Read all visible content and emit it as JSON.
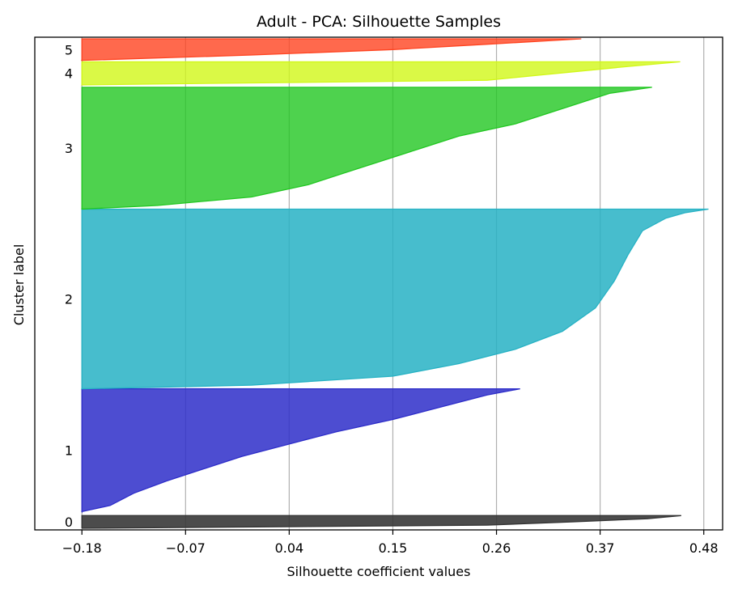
{
  "chart_data": {
    "type": "area",
    "title": "Adult - PCA: Silhouette Samples",
    "xlabel": "Silhouette coefficient values",
    "ylabel": "Cluster label",
    "xlim": [
      -0.23,
      0.5
    ],
    "x_ticks": [
      "-0.18",
      "-0.07",
      "0.04",
      "0.15",
      "0.26",
      "0.37",
      "0.48"
    ],
    "grid": "vertical",
    "series": [
      {
        "name": "0",
        "color": "#333333",
        "fill_opacity": 0.88,
        "start": 0.0,
        "end": 0.026,
        "profile": [
          [
            0,
            0.456
          ],
          [
            0.25,
            0.42
          ],
          [
            0.5,
            0.34
          ],
          [
            0.75,
            0.25
          ],
          [
            1,
            -0.18
          ]
        ]
      },
      {
        "name": "1",
        "color": "#2e2ec9",
        "fill_opacity": 0.85,
        "start": 0.034,
        "end": 0.285,
        "profile": [
          [
            0,
            0.285
          ],
          [
            0.05,
            0.25
          ],
          [
            0.15,
            0.2
          ],
          [
            0.25,
            0.15
          ],
          [
            0.35,
            0.09
          ],
          [
            0.45,
            0.04
          ],
          [
            0.55,
            -0.01
          ],
          [
            0.65,
            -0.05
          ],
          [
            0.75,
            -0.09
          ],
          [
            0.85,
            -0.125
          ],
          [
            0.95,
            -0.15
          ],
          [
            1,
            -0.18
          ]
        ]
      },
      {
        "name": "2",
        "color": "#27b2c4",
        "fill_opacity": 0.85,
        "start": 0.285,
        "end": 0.652,
        "profile": [
          [
            0,
            0.485
          ],
          [
            0.02,
            0.46
          ],
          [
            0.05,
            0.44
          ],
          [
            0.12,
            0.415
          ],
          [
            0.25,
            0.4
          ],
          [
            0.4,
            0.385
          ],
          [
            0.55,
            0.365
          ],
          [
            0.68,
            0.33
          ],
          [
            0.78,
            0.28
          ],
          [
            0.86,
            0.22
          ],
          [
            0.93,
            0.15
          ],
          [
            0.98,
            0.0
          ],
          [
            1,
            -0.18
          ]
        ]
      },
      {
        "name": "3",
        "color": "#22c722",
        "fill_opacity": 0.8,
        "start": 0.652,
        "end": 0.901,
        "profile": [
          [
            0,
            0.425
          ],
          [
            0.05,
            0.38
          ],
          [
            0.15,
            0.34
          ],
          [
            0.3,
            0.28
          ],
          [
            0.4,
            0.22
          ],
          [
            0.5,
            0.18
          ],
          [
            0.6,
            0.14
          ],
          [
            0.7,
            0.1
          ],
          [
            0.8,
            0.06
          ],
          [
            0.9,
            0.0
          ],
          [
            0.97,
            -0.1
          ],
          [
            1,
            -0.18
          ]
        ]
      },
      {
        "name": "4",
        "color": "#d1f718",
        "fill_opacity": 0.8,
        "start": 0.906,
        "end": 0.953,
        "profile": [
          [
            0,
            0.455
          ],
          [
            0.2,
            0.4
          ],
          [
            0.4,
            0.35
          ],
          [
            0.6,
            0.3
          ],
          [
            0.8,
            0.25
          ],
          [
            1,
            -0.18
          ]
        ]
      },
      {
        "name": "5",
        "color": "#ff4421",
        "fill_opacity": 0.8,
        "start": 0.956,
        "end": 1.0,
        "profile": [
          [
            0,
            0.35
          ],
          [
            0.25,
            0.25
          ],
          [
            0.5,
            0.15
          ],
          [
            0.75,
            0.0
          ],
          [
            1,
            -0.18
          ]
        ]
      }
    ]
  }
}
